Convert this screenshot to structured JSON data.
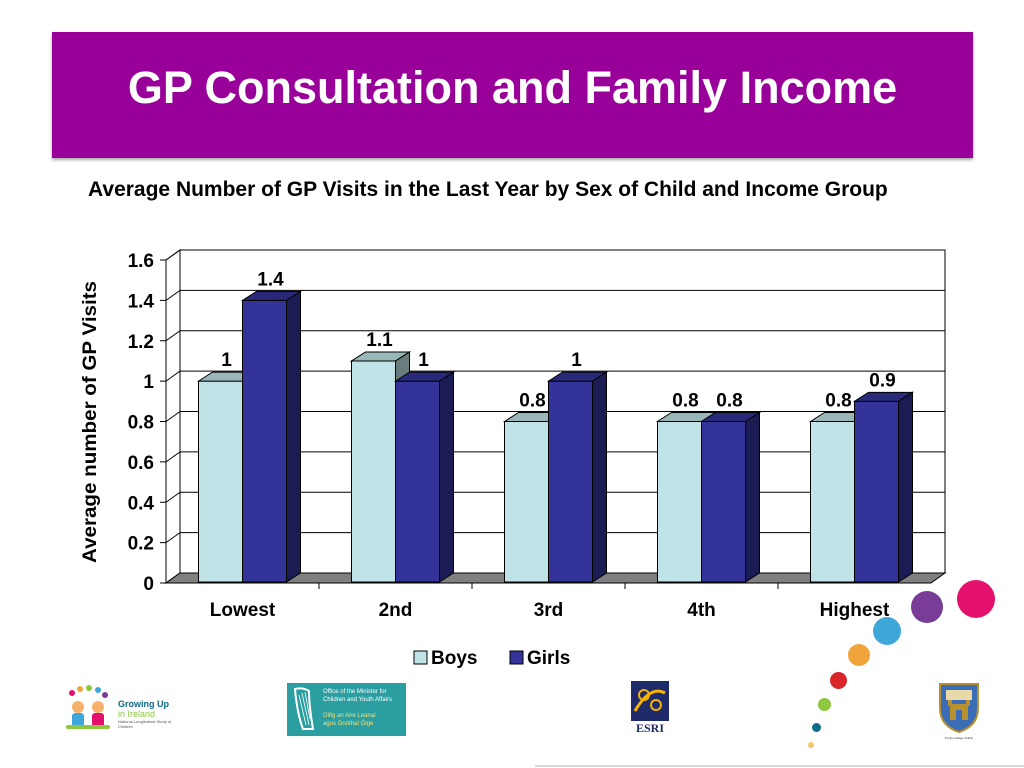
{
  "slide": {
    "title": "GP Consultation and Family Income"
  },
  "chart_data": {
    "type": "bar",
    "title": "Average Number of GP Visits in the Last Year by Sex of Child and Income Group",
    "ylabel": "Average number of GP Visits",
    "xlabel": "",
    "categories": [
      "Lowest",
      "2nd",
      "3rd",
      "4th",
      "Highest"
    ],
    "series": [
      {
        "name": "Boys",
        "values": [
          1,
          1.1,
          0.8,
          0.8,
          0.8
        ],
        "labels": [
          "1",
          "1.1",
          "0.8",
          "0.8",
          "0.8"
        ],
        "color": "#BFE3E6"
      },
      {
        "name": "Girls",
        "values": [
          1.4,
          1,
          1,
          0.8,
          0.9
        ],
        "labels": [
          "1.4",
          "1",
          "1",
          "0.8",
          "0.9"
        ],
        "color": "#333399"
      }
    ],
    "ylim": [
      0,
      1.6
    ],
    "yticks": [
      "0",
      "0.2",
      "0.4",
      "0.6",
      "0.8",
      "1",
      "1.2",
      "1.4",
      "1.6"
    ],
    "grid": true,
    "legend": "bottom-center"
  },
  "logos": {
    "growing_up": {
      "line1": "Growing Up",
      "line2": "in Ireland",
      "line3": "National Longitudinal Study of Children"
    },
    "omcya": {
      "line1": "Office of the Minister for",
      "line2": "Children and Youth Affairs",
      "line3": "Oifig an Aire Leanaí",
      "line4": "agus Gnóthaí Óige"
    },
    "esri": {
      "text": "ESRI"
    },
    "tcd": {
      "text": "Trinity College Dublin"
    }
  },
  "decor": {
    "dot_colors": [
      "#E3106E",
      "#7A3D97",
      "#3EA6D8",
      "#F1A43A",
      "#D8262A",
      "#8DC63F",
      "#0E6B8A",
      "#F4C66B"
    ]
  }
}
